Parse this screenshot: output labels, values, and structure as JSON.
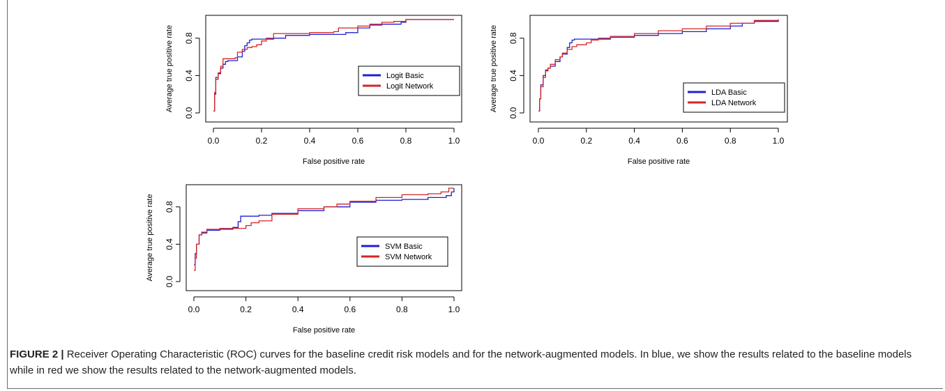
{
  "caption": {
    "label": "FIGURE 2 |",
    "text": "Receiver Operating Characteristic (ROC) curves for the baseline credit risk models and for the network-augmented models. In blue, we show the results related to the baseline models while in red we show the results related to the network-augmented models."
  },
  "colors": {
    "basic": "#1f1fd6",
    "network": "#d42525",
    "axis": "#000000"
  },
  "chart_data": [
    {
      "type": "line",
      "xlabel": "False positive rate",
      "ylabel": "Average true positive rate",
      "xlim": [
        0,
        1
      ],
      "ylim": [
        0,
        1
      ],
      "xticks": [
        "0.0",
        "0.2",
        "0.4",
        "0.6",
        "0.8",
        "1.0"
      ],
      "yticks": [
        "0.0",
        "0.4",
        "0.8"
      ],
      "legend_position": "center-right",
      "series": [
        {
          "name": "Logit Basic",
          "color": "#1f1fd6",
          "x": [
            0,
            0.005,
            0.01,
            0.02,
            0.03,
            0.04,
            0.05,
            0.06,
            0.08,
            0.1,
            0.12,
            0.13,
            0.14,
            0.15,
            0.16,
            0.2,
            0.25,
            0.3,
            0.4,
            0.5,
            0.55,
            0.6,
            0.65,
            0.7,
            0.78,
            0.8,
            0.9,
            1.0
          ],
          "y": [
            0.02,
            0.2,
            0.38,
            0.42,
            0.48,
            0.52,
            0.55,
            0.56,
            0.56,
            0.6,
            0.66,
            0.72,
            0.75,
            0.78,
            0.79,
            0.79,
            0.8,
            0.83,
            0.84,
            0.84,
            0.86,
            0.91,
            0.94,
            0.95,
            0.97,
            1.0,
            1.0,
            1.0
          ]
        },
        {
          "name": "Logit Network",
          "color": "#d42525",
          "x": [
            0,
            0.005,
            0.01,
            0.02,
            0.03,
            0.04,
            0.05,
            0.07,
            0.09,
            0.1,
            0.12,
            0.14,
            0.16,
            0.18,
            0.2,
            0.22,
            0.25,
            0.3,
            0.4,
            0.5,
            0.52,
            0.6,
            0.65,
            0.7,
            0.75,
            0.8,
            0.9,
            1.0
          ],
          "y": [
            0.02,
            0.22,
            0.36,
            0.43,
            0.5,
            0.58,
            0.58,
            0.58,
            0.59,
            0.65,
            0.68,
            0.7,
            0.71,
            0.73,
            0.77,
            0.8,
            0.85,
            0.85,
            0.86,
            0.87,
            0.91,
            0.93,
            0.95,
            0.97,
            0.98,
            1.0,
            1.0,
            1.0
          ]
        }
      ]
    },
    {
      "type": "line",
      "xlabel": "False positive rate",
      "ylabel": "Average true positive rate",
      "xlim": [
        0,
        1
      ],
      "ylim": [
        0,
        1
      ],
      "xticks": [
        "0.0",
        "0.2",
        "0.4",
        "0.6",
        "0.8",
        "1.0"
      ],
      "yticks": [
        "0.0",
        "0.4",
        "0.8"
      ],
      "legend_position": "bottom-right",
      "series": [
        {
          "name": "LDA Basic",
          "color": "#1f1fd6",
          "x": [
            0,
            0.005,
            0.01,
            0.02,
            0.03,
            0.04,
            0.05,
            0.07,
            0.09,
            0.1,
            0.12,
            0.13,
            0.14,
            0.15,
            0.2,
            0.3,
            0.4,
            0.5,
            0.6,
            0.7,
            0.8,
            0.85,
            0.9,
            1.0
          ],
          "y": [
            0.02,
            0.15,
            0.3,
            0.4,
            0.46,
            0.48,
            0.5,
            0.55,
            0.6,
            0.63,
            0.7,
            0.75,
            0.78,
            0.79,
            0.79,
            0.81,
            0.83,
            0.85,
            0.87,
            0.9,
            0.93,
            0.96,
            0.98,
            1.0
          ]
        },
        {
          "name": "LDA Network",
          "color": "#d42525",
          "x": [
            0,
            0.005,
            0.01,
            0.02,
            0.03,
            0.04,
            0.05,
            0.07,
            0.09,
            0.1,
            0.12,
            0.14,
            0.16,
            0.2,
            0.22,
            0.25,
            0.3,
            0.4,
            0.5,
            0.6,
            0.7,
            0.8,
            0.9,
            1.0
          ],
          "y": [
            0.02,
            0.15,
            0.28,
            0.38,
            0.45,
            0.48,
            0.52,
            0.57,
            0.6,
            0.64,
            0.68,
            0.71,
            0.73,
            0.75,
            0.78,
            0.8,
            0.82,
            0.85,
            0.88,
            0.9,
            0.93,
            0.96,
            0.99,
            1.0
          ]
        }
      ]
    },
    {
      "type": "line",
      "xlabel": "False positive rate",
      "ylabel": "Average true positive rate",
      "xlim": [
        0,
        1
      ],
      "ylim": [
        0,
        1
      ],
      "xticks": [
        "0.0",
        "0.2",
        "0.4",
        "0.6",
        "0.8",
        "1.0"
      ],
      "yticks": [
        "0.0",
        "0.4",
        "0.8"
      ],
      "legend_position": "bottom-right",
      "series": [
        {
          "name": "SVM Basic",
          "color": "#1f1fd6",
          "x": [
            0,
            0.005,
            0.01,
            0.02,
            0.03,
            0.05,
            0.1,
            0.15,
            0.17,
            0.18,
            0.2,
            0.25,
            0.3,
            0.4,
            0.5,
            0.6,
            0.7,
            0.8,
            0.9,
            0.97,
            0.99,
            1.0
          ],
          "y": [
            0.18,
            0.3,
            0.4,
            0.5,
            0.52,
            0.55,
            0.56,
            0.58,
            0.64,
            0.7,
            0.7,
            0.71,
            0.73,
            0.76,
            0.8,
            0.85,
            0.87,
            0.88,
            0.9,
            0.92,
            0.96,
            1.0
          ]
        },
        {
          "name": "SVM Network",
          "color": "#d42525",
          "x": [
            0,
            0.005,
            0.01,
            0.02,
            0.03,
            0.05,
            0.1,
            0.15,
            0.2,
            0.22,
            0.25,
            0.3,
            0.4,
            0.5,
            0.55,
            0.6,
            0.7,
            0.8,
            0.9,
            0.95,
            0.98,
            1.0
          ],
          "y": [
            0.12,
            0.25,
            0.4,
            0.5,
            0.53,
            0.56,
            0.57,
            0.57,
            0.6,
            0.63,
            0.65,
            0.72,
            0.78,
            0.8,
            0.83,
            0.86,
            0.9,
            0.93,
            0.94,
            0.96,
            1.0,
            1.0
          ]
        }
      ]
    }
  ]
}
